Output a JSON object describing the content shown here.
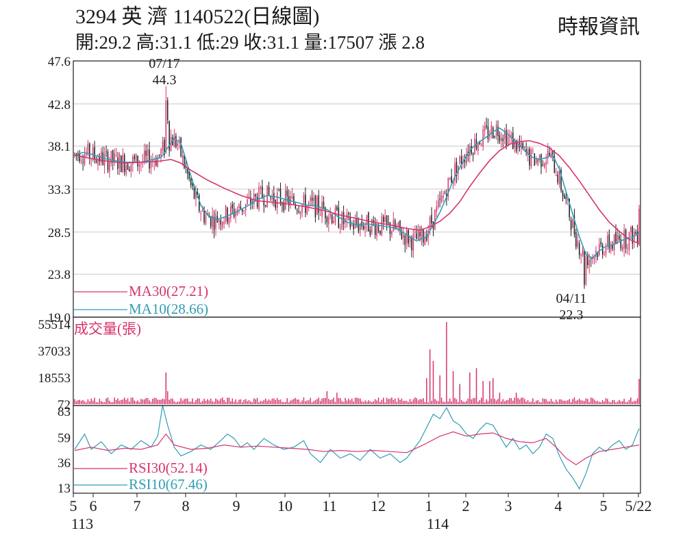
{
  "header": {
    "stock_line": "3294 英  濟 1140522(日線圖)",
    "ohlc_line": "開:29.2 高:31.1 低:29 收:31.1 量:17507 漲 2.8",
    "source": "時報資訊"
  },
  "chart_data": [
    {
      "type": "candlestick",
      "panel": "price",
      "y_ticks": [
        "47.6",
        "42.8",
        "38.1",
        "33.3",
        "28.5",
        "23.8",
        "19.0"
      ],
      "ylim": [
        19.0,
        47.6
      ],
      "grid": true,
      "legend": [
        {
          "label": "MA30(27.21)",
          "color": "#d6336c"
        },
        {
          "label": "MA10(28.66)",
          "color": "#2f9db5"
        }
      ],
      "annotations": [
        {
          "date": "07/17",
          "value": "44.3"
        },
        {
          "date": "04/11",
          "value": "22.3"
        }
      ],
      "series": [
        {
          "name": "MA10",
          "color": "#2f9db5",
          "values": [
            [
              0,
              37.0
            ],
            [
              5,
              37.4
            ],
            [
              10,
              37.2
            ],
            [
              20,
              36.6
            ],
            [
              30,
              36.3
            ],
            [
              40,
              36.3
            ],
            [
              52,
              36.8
            ],
            [
              56,
              37.9
            ],
            [
              60,
              39.0
            ],
            [
              64,
              38.4
            ],
            [
              68,
              36.0
            ],
            [
              72,
              33.6
            ],
            [
              76,
              31.5
            ],
            [
              80,
              30.4
            ],
            [
              86,
              29.9
            ],
            [
              92,
              30.3
            ],
            [
              98,
              30.8
            ],
            [
              104,
              31.4
            ],
            [
              110,
              32.1
            ],
            [
              116,
              32.6
            ],
            [
              122,
              32.4
            ],
            [
              128,
              32.1
            ],
            [
              134,
              31.8
            ],
            [
              140,
              31.5
            ],
            [
              146,
              31.4
            ],
            [
              152,
              31.0
            ],
            [
              158,
              30.3
            ],
            [
              164,
              29.6
            ],
            [
              170,
              29.3
            ],
            [
              176,
              29.4
            ],
            [
              182,
              29.3
            ],
            [
              188,
              29.1
            ],
            [
              194,
              28.9
            ],
            [
              200,
              28.2
            ],
            [
              206,
              27.5
            ],
            [
              212,
              28.0
            ],
            [
              216,
              29.3
            ],
            [
              220,
              30.7
            ],
            [
              224,
              32.4
            ],
            [
              228,
              34.3
            ],
            [
              232,
              35.7
            ],
            [
              236,
              37.0
            ],
            [
              240,
              38.0
            ],
            [
              244,
              38.6
            ],
            [
              248,
              39.1
            ],
            [
              252,
              39.7
            ],
            [
              256,
              40.1
            ],
            [
              260,
              39.6
            ],
            [
              264,
              38.9
            ],
            [
              268,
              38.2
            ],
            [
              272,
              37.4
            ],
            [
              276,
              36.8
            ],
            [
              280,
              36.6
            ],
            [
              284,
              36.8
            ],
            [
              288,
              37.1
            ],
            [
              292,
              35.5
            ],
            [
              296,
              33.0
            ],
            [
              300,
              30.5
            ],
            [
              304,
              28.0
            ],
            [
              308,
              26.0
            ],
            [
              312,
              25.6
            ],
            [
              316,
              26.4
            ],
            [
              320,
              26.9
            ],
            [
              326,
              27.2
            ],
            [
              330,
              27.6
            ],
            [
              336,
              27.9
            ],
            [
              340,
              28.4
            ]
          ]
        },
        {
          "name": "MA30",
          "color": "#d6336c",
          "values": [
            [
              0,
              37.1
            ],
            [
              10,
              36.7
            ],
            [
              20,
              36.4
            ],
            [
              30,
              36.2
            ],
            [
              40,
              36.3
            ],
            [
              50,
              36.4
            ],
            [
              58,
              36.6
            ],
            [
              64,
              36.2
            ],
            [
              70,
              35.4
            ],
            [
              80,
              34.3
            ],
            [
              90,
              33.4
            ],
            [
              100,
              32.6
            ],
            [
              110,
              32.0
            ],
            [
              120,
              31.8
            ],
            [
              130,
              31.6
            ],
            [
              140,
              31.3
            ],
            [
              150,
              30.9
            ],
            [
              160,
              30.4
            ],
            [
              170,
              30.0
            ],
            [
              180,
              29.6
            ],
            [
              190,
              29.3
            ],
            [
              200,
              28.9
            ],
            [
              208,
              28.7
            ],
            [
              214,
              29.1
            ],
            [
              220,
              29.7
            ],
            [
              226,
              30.6
            ],
            [
              232,
              31.9
            ],
            [
              238,
              33.6
            ],
            [
              244,
              35.1
            ],
            [
              250,
              36.5
            ],
            [
              256,
              37.6
            ],
            [
              262,
              38.3
            ],
            [
              268,
              38.6
            ],
            [
              274,
              38.7
            ],
            [
              280,
              38.4
            ],
            [
              286,
              37.9
            ],
            [
              292,
              37.0
            ],
            [
              298,
              35.7
            ],
            [
              304,
              34.2
            ],
            [
              310,
              32.6
            ],
            [
              316,
              31.0
            ],
            [
              322,
              29.6
            ],
            [
              328,
              28.6
            ],
            [
              334,
              27.7
            ],
            [
              340,
              27.2
            ]
          ]
        }
      ]
    },
    {
      "type": "bar",
      "panel": "volume",
      "y_label": "成交量(張)",
      "y_ticks": [
        "55514",
        "37033",
        "18553",
        "72"
      ],
      "ylim": [
        72,
        55514
      ],
      "spikes": [
        [
          55,
          22000
        ],
        [
          56,
          9000
        ],
        [
          152,
          9000
        ],
        [
          158,
          8000
        ],
        [
          212,
          18000
        ],
        [
          214,
          38000
        ],
        [
          216,
          30000
        ],
        [
          220,
          20000
        ],
        [
          224,
          57000
        ],
        [
          228,
          23000
        ],
        [
          232,
          14000
        ],
        [
          238,
          22000
        ],
        [
          242,
          25000
        ],
        [
          246,
          16000
        ],
        [
          250,
          16000
        ],
        [
          252,
          18000
        ],
        [
          256,
          8000
        ],
        [
          266,
          8000
        ],
        [
          340,
          17507
        ]
      ]
    },
    {
      "type": "line",
      "panel": "rsi",
      "y_ticks": [
        "83",
        "59",
        "36",
        "13"
      ],
      "ylim": [
        8,
        88
      ],
      "legend": [
        {
          "label": "RSI30(52.14)",
          "color": "#d6336c"
        },
        {
          "label": "RSI10(67.46)",
          "color": "#2f9db5"
        }
      ],
      "series": [
        {
          "name": "RSI10",
          "color": "#2f9db5",
          "values": [
            [
              0,
              48
            ],
            [
              6,
              62
            ],
            [
              10,
              48
            ],
            [
              16,
              55
            ],
            [
              22,
              44
            ],
            [
              28,
              52
            ],
            [
              34,
              48
            ],
            [
              40,
              56
            ],
            [
              46,
              50
            ],
            [
              50,
              60
            ],
            [
              53,
              88
            ],
            [
              56,
              70
            ],
            [
              60,
              50
            ],
            [
              64,
              42
            ],
            [
              70,
              46
            ],
            [
              76,
              52
            ],
            [
              82,
              48
            ],
            [
              88,
              56
            ],
            [
              92,
              62
            ],
            [
              96,
              58
            ],
            [
              100,
              50
            ],
            [
              104,
              54
            ],
            [
              108,
              48
            ],
            [
              114,
              58
            ],
            [
              120,
              52
            ],
            [
              126,
              48
            ],
            [
              132,
              50
            ],
            [
              138,
              56
            ],
            [
              142,
              44
            ],
            [
              148,
              36
            ],
            [
              154,
              48
            ],
            [
              160,
              40
            ],
            [
              166,
              44
            ],
            [
              172,
              38
            ],
            [
              178,
              48
            ],
            [
              184,
              40
            ],
            [
              190,
              44
            ],
            [
              196,
              36
            ],
            [
              200,
              40
            ],
            [
              204,
              48
            ],
            [
              208,
              56
            ],
            [
              212,
              68
            ],
            [
              216,
              80
            ],
            [
              220,
              76
            ],
            [
              224,
              86
            ],
            [
              228,
              74
            ],
            [
              232,
              70
            ],
            [
              236,
              62
            ],
            [
              240,
              58
            ],
            [
              244,
              66
            ],
            [
              248,
              72
            ],
            [
              252,
              70
            ],
            [
              256,
              60
            ],
            [
              260,
              50
            ],
            [
              264,
              58
            ],
            [
              268,
              48
            ],
            [
              272,
              52
            ],
            [
              276,
              44
            ],
            [
              280,
              50
            ],
            [
              284,
              62
            ],
            [
              288,
              58
            ],
            [
              292,
              42
            ],
            [
              296,
              30
            ],
            [
              300,
              22
            ],
            [
              304,
              12
            ],
            [
              308,
              26
            ],
            [
              312,
              44
            ],
            [
              316,
              50
            ],
            [
              320,
              46
            ],
            [
              324,
              52
            ],
            [
              328,
              56
            ],
            [
              332,
              48
            ],
            [
              336,
              52
            ],
            [
              340,
              67
            ]
          ]
        },
        {
          "name": "RSI30",
          "color": "#d6336c",
          "values": [
            [
              0,
              47
            ],
            [
              10,
              50
            ],
            [
              20,
              47
            ],
            [
              30,
              49
            ],
            [
              40,
              48
            ],
            [
              50,
              52
            ],
            [
              55,
              62
            ],
            [
              60,
              52
            ],
            [
              70,
              48
            ],
            [
              80,
              49
            ],
            [
              90,
              52
            ],
            [
              100,
              50
            ],
            [
              110,
              51
            ],
            [
              120,
              50
            ],
            [
              130,
              49
            ],
            [
              140,
              48
            ],
            [
              150,
              46
            ],
            [
              160,
              47
            ],
            [
              170,
              46
            ],
            [
              180,
              47
            ],
            [
              190,
              46
            ],
            [
              200,
              45
            ],
            [
              210,
              52
            ],
            [
              220,
              60
            ],
            [
              228,
              64
            ],
            [
              236,
              60
            ],
            [
              244,
              62
            ],
            [
              252,
              63
            ],
            [
              260,
              58
            ],
            [
              268,
              55
            ],
            [
              276,
              54
            ],
            [
              284,
              58
            ],
            [
              290,
              50
            ],
            [
              296,
              40
            ],
            [
              302,
              34
            ],
            [
              308,
              40
            ],
            [
              316,
              46
            ],
            [
              324,
              48
            ],
            [
              332,
              50
            ],
            [
              340,
              52
            ]
          ]
        }
      ]
    }
  ],
  "x_axis": {
    "labels": [
      "5",
      "6",
      "7",
      "8",
      "9",
      "10",
      "11",
      "12",
      "1",
      "2",
      "3",
      "4",
      "5",
      "5/22"
    ],
    "year_labels": [
      "113",
      "114"
    ]
  }
}
